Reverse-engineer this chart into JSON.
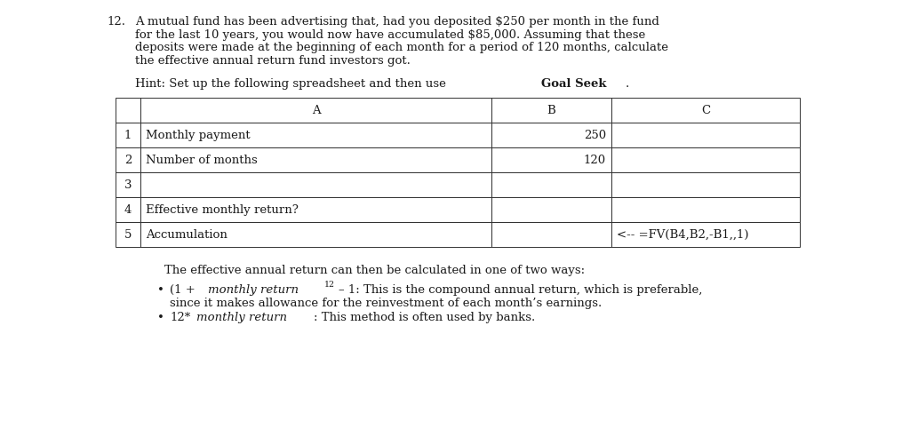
{
  "fig_width": 10.24,
  "fig_height": 5.01,
  "bg_color": "#ffffff",
  "text_color": "#1a1a1a",
  "problem_number": "12.",
  "problem_text_lines": [
    "A mutual fund has been advertising that, had you deposited $250 per month in the fund",
    "for the last 10 years, you would now have accumulated $85,000. Assuming that these",
    "deposits were made at the beginning of each month for a period of 120 months, calculate",
    "the effective annual return fund investors got."
  ],
  "hint_prefix": "Hint: Set up the following spreadsheet and then use ",
  "hint_bold": "Goal Seek",
  "hint_suffix": ".",
  "table_rows": [
    [
      "1",
      "Monthly payment",
      "250",
      ""
    ],
    [
      "2",
      "Number of months",
      "120",
      ""
    ],
    [
      "3",
      "",
      "",
      ""
    ],
    [
      "4",
      "Effective monthly return?",
      "",
      ""
    ],
    [
      "5",
      "Accumulation",
      "",
      "<-- =FV(B4,B2,-B1,,1)"
    ]
  ],
  "footer_text": "The effective annual return can then be calculated in one of two ways:",
  "font_size_body": 9.5,
  "font_size_table": 9.5
}
